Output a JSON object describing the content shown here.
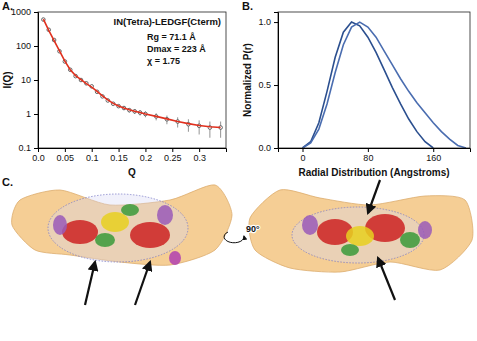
{
  "chart_data": [
    {
      "type": "scatter",
      "label": "A.",
      "log": "y",
      "grid": false,
      "xlabel": "Q",
      "ylabel": "I(Q)",
      "annotations": [
        "IN(Tetra)-LEDGF(Cterm)",
        "Rg = 71.1 Å",
        "Dmax = 223 Å",
        "χ = 1.75"
      ],
      "x": [
        0.01,
        0.02,
        0.03,
        0.04,
        0.05,
        0.06,
        0.07,
        0.08,
        0.09,
        0.1,
        0.11,
        0.12,
        0.13,
        0.14,
        0.15,
        0.16,
        0.17,
        0.18,
        0.19,
        0.2,
        0.22,
        0.24,
        0.26,
        0.28,
        0.3,
        0.32,
        0.34
      ],
      "series": [
        {
          "type": "scatter",
          "color": "#444444",
          "marker": "circle",
          "values": [
            600,
            300,
            150,
            70,
            35,
            20,
            13,
            10,
            8,
            6.5,
            4.5,
            3.3,
            2.5,
            2.0,
            1.7,
            1.5,
            1.3,
            1.2,
            1.1,
            1.0,
            0.85,
            0.7,
            0.6,
            0.5,
            0.45,
            0.4,
            0.4
          ],
          "errors": [
            10,
            5,
            3,
            2,
            1,
            0.6,
            0.4,
            0.3,
            0.3,
            0.25,
            0.2,
            0.2,
            0.2,
            0.2,
            0.2,
            0.2,
            0.2,
            0.2,
            0.2,
            0.2,
            0.2,
            0.2,
            0.2,
            0.2,
            0.2,
            0.2,
            0.2
          ]
        },
        {
          "type": "line",
          "color": "#e0301e",
          "line_style": "solid",
          "values": [
            620,
            290,
            145,
            72,
            36,
            20,
            13.5,
            10.2,
            7.8,
            6.2,
            4.6,
            3.4,
            2.6,
            2.05,
            1.72,
            1.5,
            1.33,
            1.2,
            1.1,
            1.0,
            0.85,
            0.72,
            0.6,
            0.52,
            0.46,
            0.42,
            0.4
          ]
        }
      ],
      "xlim": [
        0,
        0.35
      ],
      "xticks": [
        {
          "value": 0,
          "label": "0.0"
        },
        0.05,
        0.1,
        0.15,
        0.2,
        0.25,
        0.3
      ],
      "ylim": [
        0.1,
        1000
      ],
      "yticks": [
        0.1,
        1,
        10,
        100,
        1000
      ]
    },
    {
      "type": "line",
      "label": "B.",
      "grid": false,
      "xlabel": "Radial Distribution (Angstroms)",
      "ylabel": "Normalized P(r)",
      "x": [
        0,
        10,
        20,
        30,
        40,
        50,
        60,
        70,
        80,
        90,
        100,
        110,
        120,
        130,
        140,
        150,
        160,
        170,
        180,
        190,
        200
      ],
      "series": [
        {
          "color": "#2b4f8f",
          "line_style": "solid",
          "values": [
            0,
            0.05,
            0.2,
            0.45,
            0.72,
            0.92,
            1.0,
            0.97,
            0.88,
            0.76,
            0.62,
            0.48,
            0.35,
            0.23,
            0.13,
            0.05,
            0,
            null,
            null,
            null,
            null
          ]
        },
        {
          "color": "#4a6db0",
          "line_style": "solid",
          "values": [
            0,
            0.04,
            0.15,
            0.35,
            0.6,
            0.82,
            0.96,
            1.0,
            0.96,
            0.88,
            0.77,
            0.66,
            0.55,
            0.45,
            0.36,
            0.28,
            0.2,
            0.13,
            0.07,
            0.02,
            0
          ]
        }
      ],
      "xlim": [
        -30,
        205
      ],
      "xticks": [
        0,
        80,
        160
      ],
      "ylim": [
        0,
        1.08
      ],
      "yticks": [
        {
          "value": 0,
          "label": "0.0"
        },
        0.5,
        {
          "value": 1,
          "label": "1.0"
        }
      ]
    }
  ],
  "panel_c": {
    "label": "C.",
    "rotation_label": "90°"
  }
}
